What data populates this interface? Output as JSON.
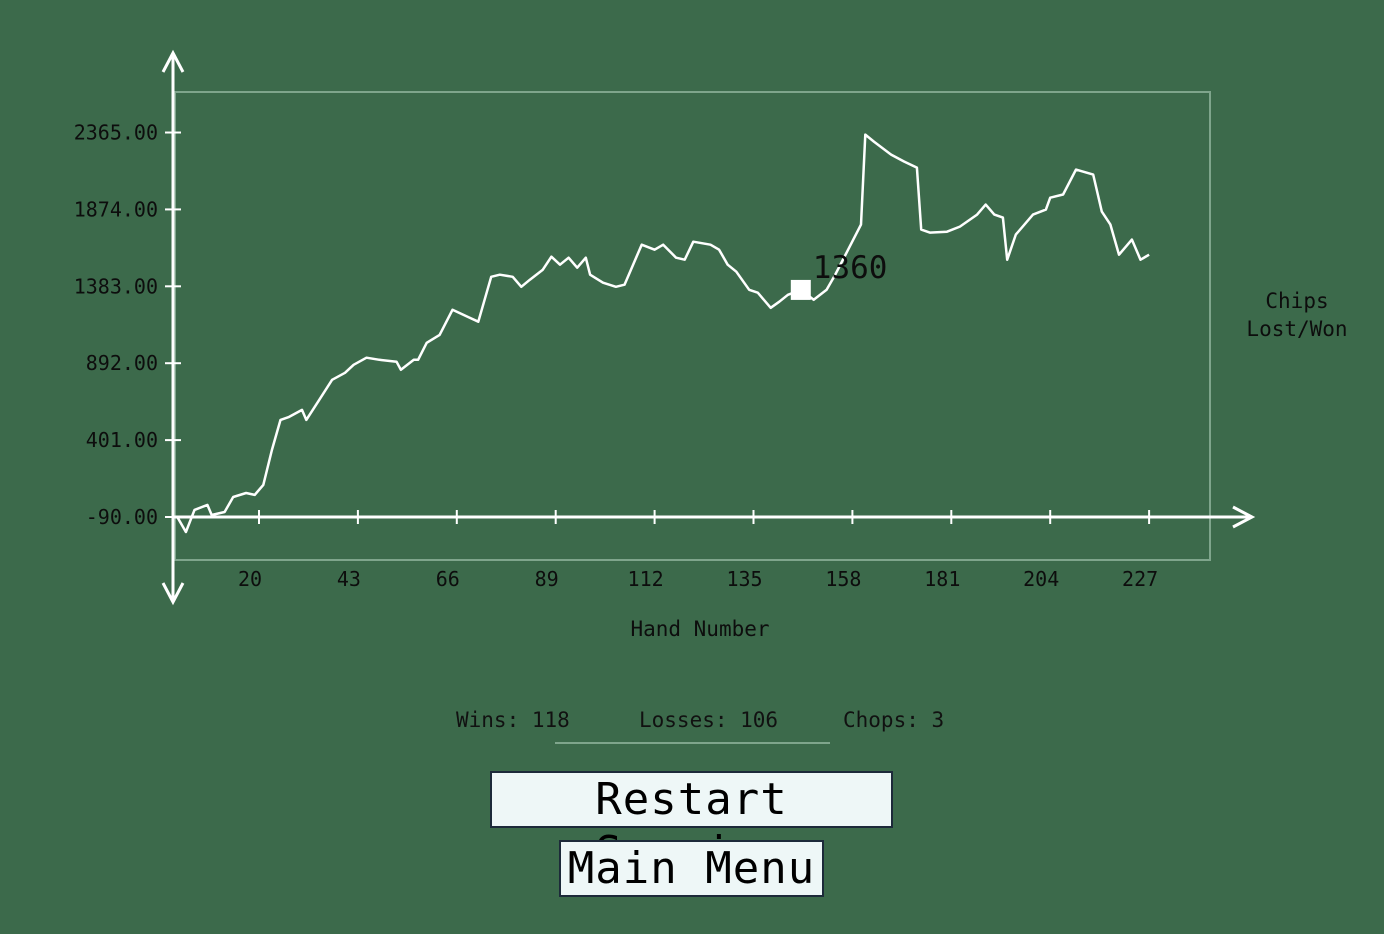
{
  "chart_data": {
    "type": "line",
    "x_label": "Hand Number",
    "y_label": [
      "Chips",
      "Lost/Won"
    ],
    "color": "#ffffff",
    "x": [
      1,
      3,
      5,
      8,
      9,
      12,
      14,
      17,
      19,
      21,
      23,
      25,
      27,
      30,
      31,
      34,
      37,
      40,
      42,
      45,
      48,
      52,
      53,
      56,
      57,
      59,
      62,
      65,
      69,
      71,
      74,
      76,
      79,
      81,
      83,
      86,
      88,
      90,
      92,
      94,
      96,
      97,
      100,
      103,
      105,
      107,
      109,
      112,
      114,
      117,
      119,
      121,
      125,
      127,
      129,
      131,
      134,
      136,
      139,
      141,
      143,
      146,
      149,
      152,
      154,
      157,
      160,
      161,
      163,
      167,
      170,
      173,
      174,
      176,
      180,
      183,
      187,
      189,
      191,
      193,
      194,
      196,
      200,
      203,
      204,
      207,
      210,
      214,
      216,
      218,
      220,
      223,
      225,
      227
    ],
    "values": [
      -90,
      -186,
      -45,
      -13,
      -77,
      -58,
      38,
      63,
      51,
      115,
      338,
      530,
      549,
      594,
      530,
      658,
      786,
      831,
      882,
      927,
      914,
      901,
      850,
      914,
      914,
      1022,
      1073,
      1233,
      1182,
      1157,
      1444,
      1457,
      1444,
      1380,
      1425,
      1489,
      1572,
      1521,
      1566,
      1502,
      1566,
      1457,
      1406,
      1380,
      1393,
      1521,
      1649,
      1617,
      1649,
      1566,
      1553,
      1668,
      1649,
      1617,
      1521,
      1476,
      1361,
      1342,
      1246,
      1285,
      1329,
      1360,
      1297,
      1361,
      1457,
      1617,
      1777,
      2352,
      2307,
      2224,
      2180,
      2141,
      1745,
      1726,
      1732,
      1764,
      1841,
      1905,
      1841,
      1822,
      1553,
      1713,
      1841,
      1873,
      1949,
      1969,
      2128,
      2096,
      1860,
      1777,
      1585,
      1681,
      1553,
      1585
    ],
    "highlight": {
      "x": 146,
      "value": 1360
    },
    "xlim": [
      0,
      250
    ],
    "ylim": [
      -620,
      2860
    ],
    "xticks": [
      20,
      43,
      66,
      89,
      112,
      135,
      158,
      181,
      204,
      227
    ],
    "yticks": [
      {
        "value": -90,
        "label": "-90.00"
      },
      {
        "value": 401,
        "label": "401.00"
      },
      {
        "value": 892,
        "label": "892.00"
      },
      {
        "value": 1383,
        "label": "1383.00"
      },
      {
        "value": 1874,
        "label": "1874.00"
      },
      {
        "value": 2365,
        "label": "2365.00"
      }
    ]
  },
  "stats": {
    "wins": "Wins: 118",
    "losses": "Losses: 106",
    "chops": "Chops: 3"
  },
  "buttons": {
    "restart": "Restart Session",
    "menu": "Main Menu"
  }
}
